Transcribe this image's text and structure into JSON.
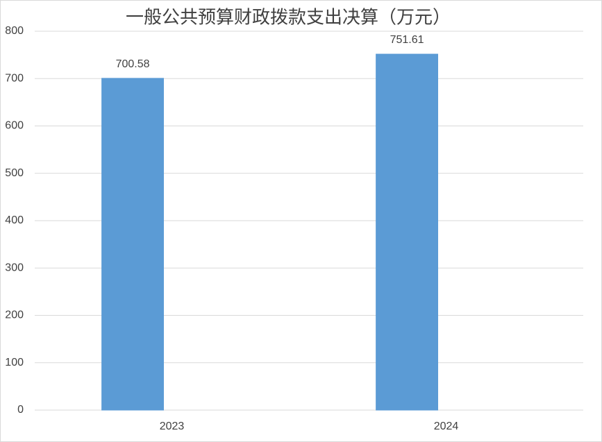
{
  "chart_data": {
    "type": "bar",
    "title": "一般公共预算财政拨款支出决算（万元）",
    "categories": [
      "2023",
      "2024"
    ],
    "series": [
      {
        "color": "#5b9bd5",
        "values": [
          700.58,
          751.61
        ]
      },
      {
        "color": "#a5a5a5",
        "values": [
          0,
          null
        ]
      }
    ],
    "data_labels_series": 0,
    "ylim": [
      0,
      800
    ],
    "yticks": [
      0,
      100,
      200,
      300,
      400,
      500,
      600,
      700,
      800
    ],
    "grid": true
  }
}
